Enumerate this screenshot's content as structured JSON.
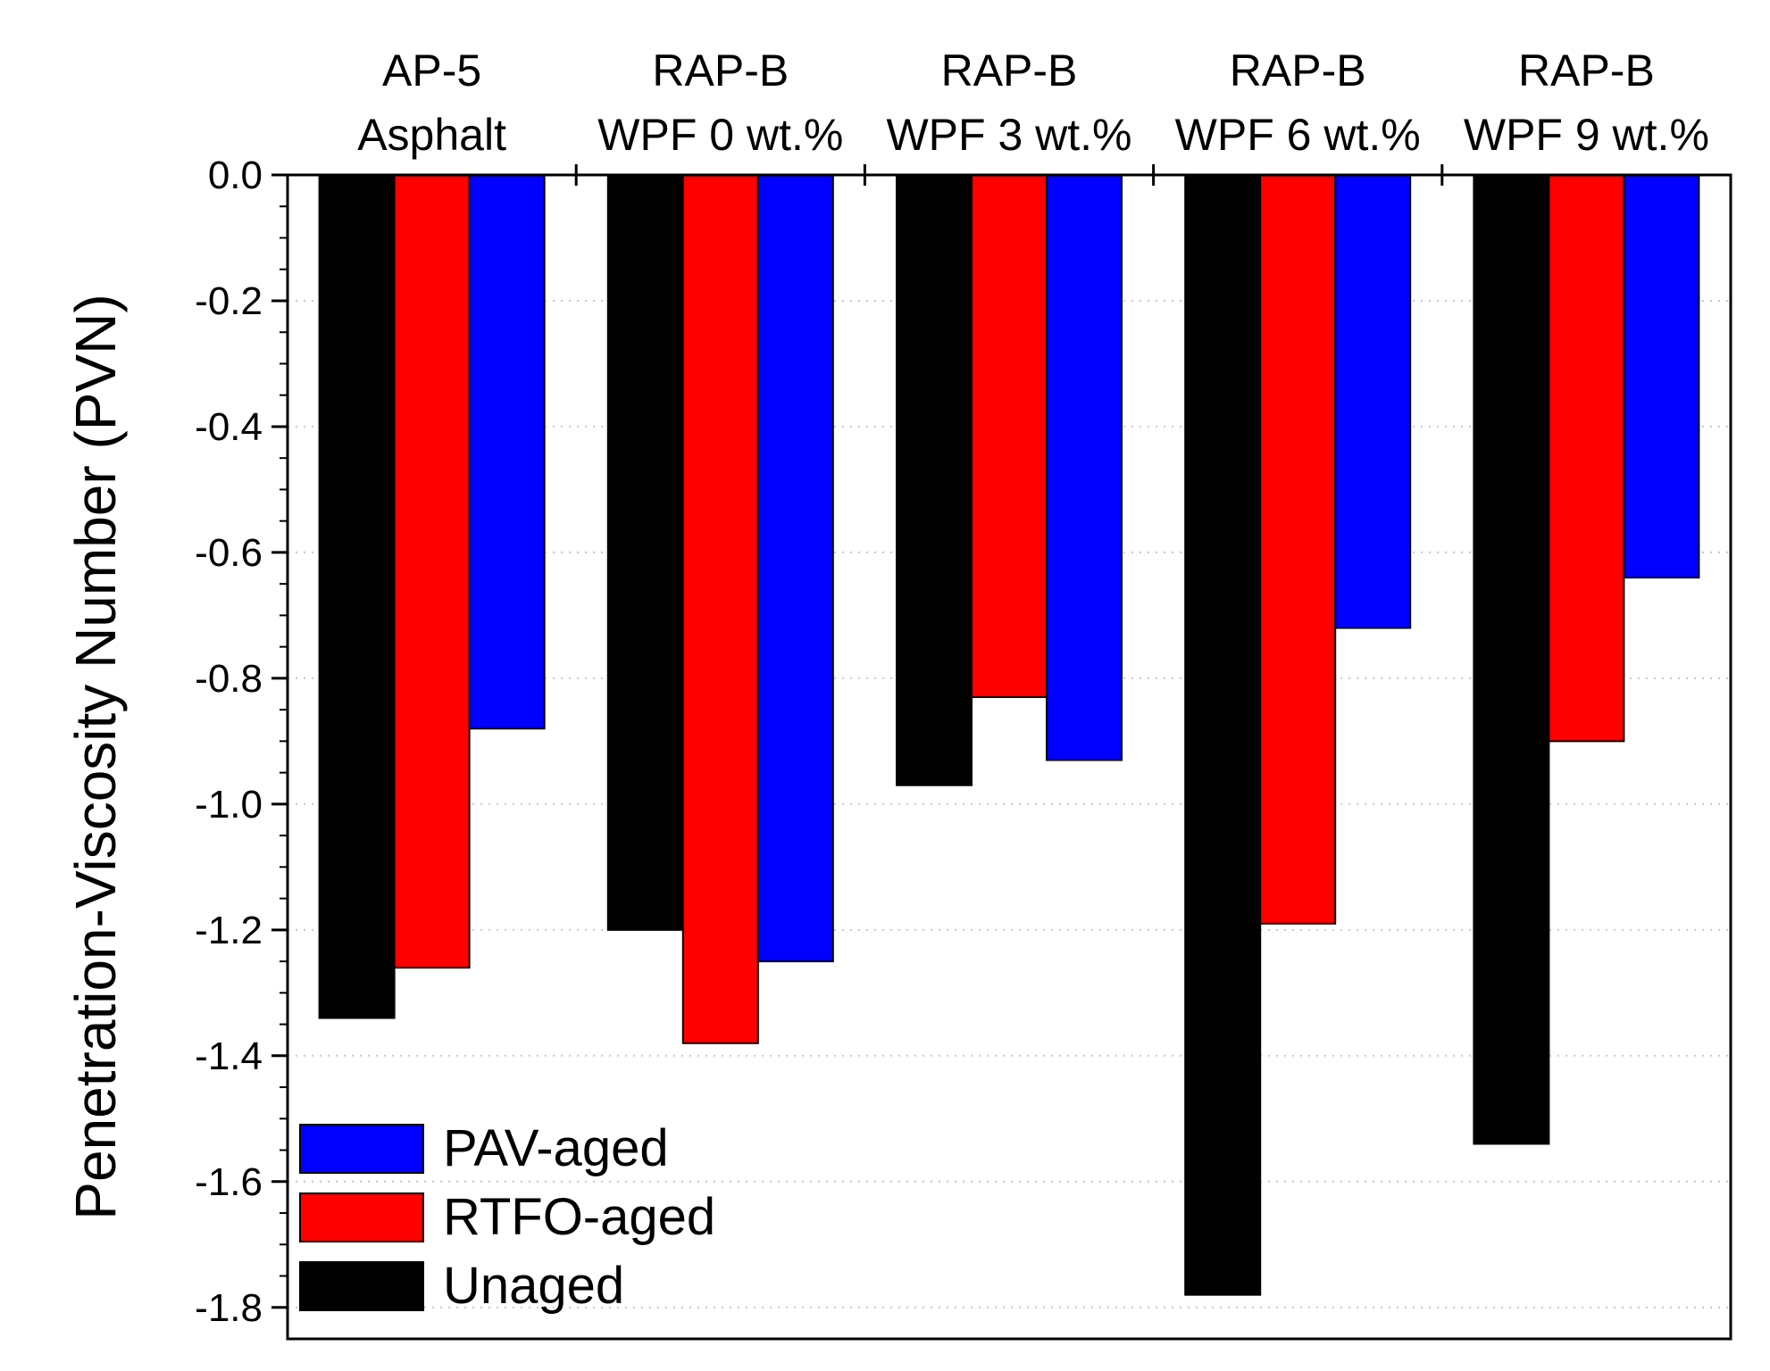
{
  "chart_data": {
    "type": "bar",
    "title": "",
    "categories": [
      [
        "AP-5",
        "Asphalt"
      ],
      [
        "RAP-B",
        "WPF 0 wt.%"
      ],
      [
        "RAP-B",
        "WPF 3 wt.%"
      ],
      [
        "RAP-B",
        "WPF 6 wt.%"
      ],
      [
        "RAP-B",
        "WPF 9 wt.%"
      ]
    ],
    "series": [
      {
        "name": "Unaged",
        "color": "#000000",
        "values": [
          -1.34,
          -1.2,
          -0.97,
          -1.78,
          -1.54
        ]
      },
      {
        "name": "RTFO-aged",
        "color": "#ff0000",
        "values": [
          -1.26,
          -1.38,
          -0.83,
          -1.19,
          -0.9
        ]
      },
      {
        "name": "PAV-aged",
        "color": "#0000ff",
        "values": [
          -0.88,
          -1.25,
          -0.93,
          -0.72,
          -0.64
        ]
      }
    ],
    "xlabel": "",
    "ylabel": "Penetration-Viscosity Number (PVN)",
    "ylim": [
      -1.85,
      0.0
    ],
    "yticks": [
      "0.0",
      "-0.2",
      "-0.4",
      "-0.6",
      "-0.8",
      "-1.0",
      "-1.2",
      "-1.4",
      "-1.6",
      "-1.8"
    ],
    "ytick_values": [
      0.0,
      -0.2,
      -0.4,
      -0.6,
      -0.8,
      -1.0,
      -1.2,
      -1.4,
      -1.6,
      -1.8
    ],
    "grid": "dotted horizontal",
    "x_axis_position": "top",
    "legend": {
      "placement": "bottom-left",
      "entries": [
        {
          "label": "PAV-aged",
          "color": "#0000ff"
        },
        {
          "label": "RTFO-aged",
          "color": "#ff0000"
        },
        {
          "label": "Unaged",
          "color": "#000000"
        }
      ]
    }
  }
}
